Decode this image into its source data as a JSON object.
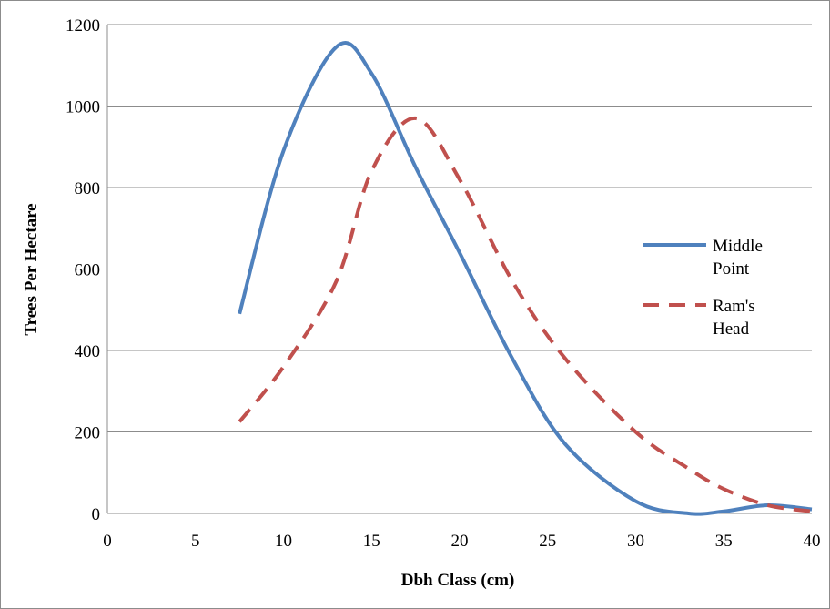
{
  "chart_data": {
    "type": "line",
    "title": "",
    "xlabel": "Dbh Class (cm)",
    "ylabel": "Trees Per Hectare",
    "xlim": [
      0,
      40
    ],
    "ylim": [
      0,
      1200
    ],
    "xticks": [
      "0",
      "5",
      "10",
      "15",
      "20",
      "25",
      "30",
      "35",
      "40"
    ],
    "yticks": [
      "0",
      "200",
      "400",
      "600",
      "800",
      "1000",
      "1200"
    ],
    "grid": "horizontal",
    "legend_position": "right",
    "series": [
      {
        "name": "Middle Point",
        "legend_lines": [
          "Middle",
          "Point"
        ],
        "color": "#4f81bd",
        "style": "solid",
        "x": [
          7.5,
          10,
          13,
          15,
          17.5,
          20,
          23,
          26,
          30,
          33,
          35,
          37.5,
          40
        ],
        "y": [
          490,
          890,
          1145,
          1080,
          850,
          640,
          380,
          170,
          30,
          0,
          5,
          20,
          10
        ]
      },
      {
        "name": "Ram's Head",
        "legend_lines": [
          "Ram's",
          "Head"
        ],
        "color": "#c0504d",
        "style": "dashed",
        "x": [
          7.5,
          10,
          13,
          15,
          17.5,
          20,
          23,
          26,
          30,
          33,
          35,
          37.5,
          40
        ],
        "y": [
          225,
          360,
          570,
          840,
          970,
          820,
          570,
          380,
          200,
          110,
          60,
          20,
          5
        ]
      }
    ]
  }
}
